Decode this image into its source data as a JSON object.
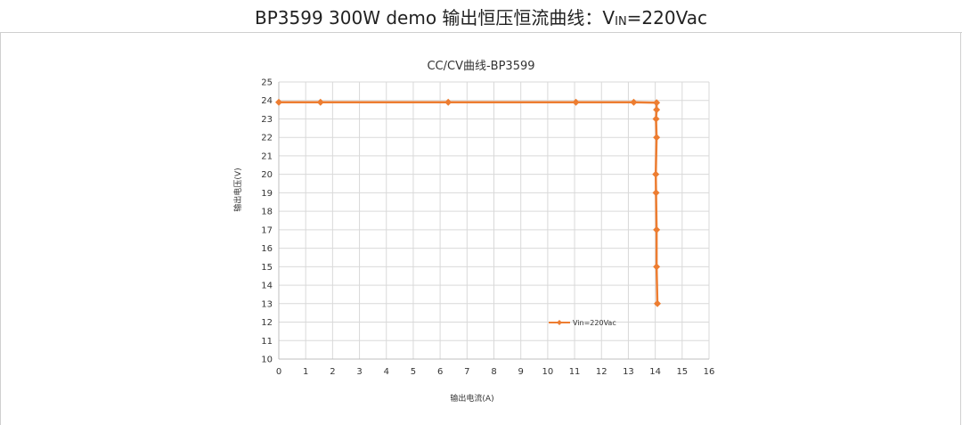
{
  "header": {
    "title_main": "BP3599 300W demo 输出恒压恒流曲线：V",
    "title_sub": "IN",
    "title_tail": "=220Vac"
  },
  "colors": {
    "series": "#ED7D31",
    "grid": "#D9D9D9",
    "axis": "#BFBFBF",
    "text": "#333333"
  },
  "chart_data": {
    "type": "line",
    "title": "CC/CV曲线-BP3599",
    "xlabel": "输出电流(A)",
    "ylabel": "输出电压(V)",
    "xlim": [
      0,
      16
    ],
    "ylim": [
      10,
      25
    ],
    "xticks": [
      "0",
      "1",
      "2",
      "3",
      "4",
      "5",
      "6",
      "7",
      "8",
      "9",
      "10",
      "11",
      "12",
      "13",
      "14",
      "15",
      "16"
    ],
    "yticks": [
      "10",
      "11",
      "12",
      "13",
      "14",
      "15",
      "16",
      "17",
      "18",
      "19",
      "20",
      "21",
      "22",
      "23",
      "24",
      "25"
    ],
    "grid": true,
    "legend_position": "lower-right",
    "markers": "diamond",
    "series": [
      {
        "name": "Vin=220Vac",
        "x": [
          0,
          1.55,
          6.3,
          11.05,
          13.2,
          14.05,
          14.05,
          14.03,
          14.05,
          14.02,
          14.03,
          14.05,
          14.05,
          14.08
        ],
        "y": [
          23.9,
          23.9,
          23.9,
          23.9,
          23.9,
          23.88,
          23.5,
          23.0,
          22.0,
          20.0,
          19.0,
          17.0,
          15.0,
          13.0
        ]
      }
    ]
  }
}
